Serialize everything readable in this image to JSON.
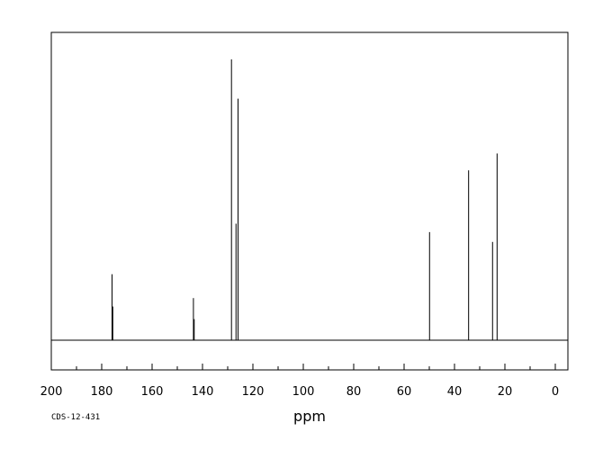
{
  "chart_data": {
    "type": "line",
    "title": "",
    "xlabel": "ppm",
    "ylabel": "",
    "xlim": [
      200,
      -5
    ],
    "ylim": [
      0,
      100
    ],
    "grid": false,
    "x_axis_reversed": true,
    "x_ticks": [
      200,
      180,
      160,
      140,
      120,
      100,
      80,
      60,
      40,
      20,
      0
    ],
    "x_tick_labels": [
      "200",
      "180",
      "160",
      "140",
      "120",
      "100",
      "80",
      "60",
      "40",
      "20",
      "0"
    ],
    "series": [
      {
        "values": [
          {
            "x": 175.9,
            "y": 23.5
          },
          {
            "x": 175.6,
            "y": 12.0
          },
          {
            "x": 143.6,
            "y": 15.0
          },
          {
            "x": 143.3,
            "y": 7.5
          },
          {
            "x": 128.5,
            "y": 100.0
          },
          {
            "x": 126.7,
            "y": 41.5
          },
          {
            "x": 125.9,
            "y": 86.0
          },
          {
            "x": 49.9,
            "y": 38.5
          },
          {
            "x": 34.4,
            "y": 60.5
          },
          {
            "x": 24.9,
            "y": 35.0
          },
          {
            "x": 23.1,
            "y": 66.5
          }
        ]
      }
    ]
  },
  "footer": {
    "code": "CDS-12-431"
  },
  "colors": {
    "line": "#000000",
    "background": "#ffffff"
  }
}
